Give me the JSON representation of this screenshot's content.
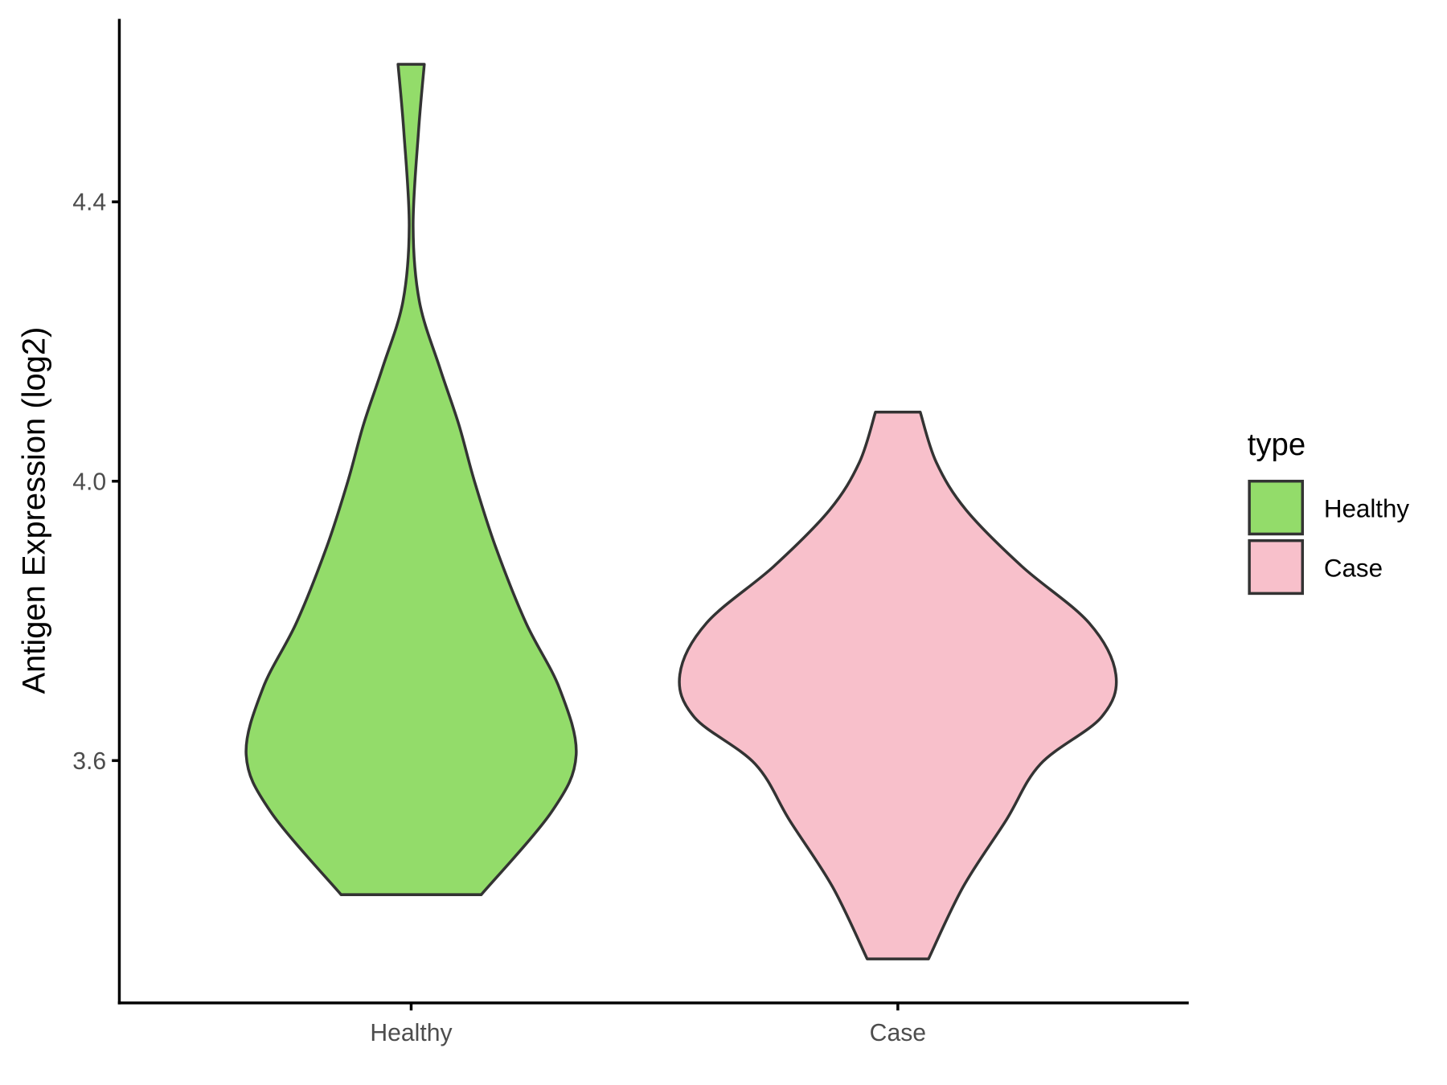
{
  "chart_data": {
    "type": "violin",
    "y_label": "Antigen Expression (log2)",
    "categories": [
      "Healthy",
      "Case"
    ],
    "ylim": [
      3.253,
      4.662
    ],
    "yticks": [
      {
        "value": 3.6,
        "label": "3.6"
      },
      {
        "value": 4.0,
        "label": "4.0"
      },
      {
        "value": 4.4,
        "label": "4.4"
      }
    ],
    "legend_title": "type",
    "legend_position": "right",
    "series": [
      {
        "name": "Healthy",
        "color": "#93dc6a",
        "y": [
          4.597,
          4.5,
          4.365,
          4.257,
          4.162,
          4.081,
          4.0,
          3.905,
          3.797,
          3.703,
          3.608,
          3.527,
          3.408
        ],
        "density": [
          0.027,
          0.015,
          0.004,
          0.017,
          0.059,
          0.098,
          0.13,
          0.174,
          0.236,
          0.305,
          0.339,
          0.289,
          0.144
        ]
      },
      {
        "name": "Case",
        "color": "#f8c0cb",
        "y": [
          4.099,
          4.027,
          3.959,
          3.878,
          3.797,
          3.723,
          3.662,
          3.595,
          3.514,
          3.419,
          3.316
        ],
        "density": [
          0.046,
          0.079,
          0.14,
          0.255,
          0.393,
          0.448,
          0.418,
          0.293,
          0.222,
          0.134,
          0.063
        ]
      }
    ]
  }
}
